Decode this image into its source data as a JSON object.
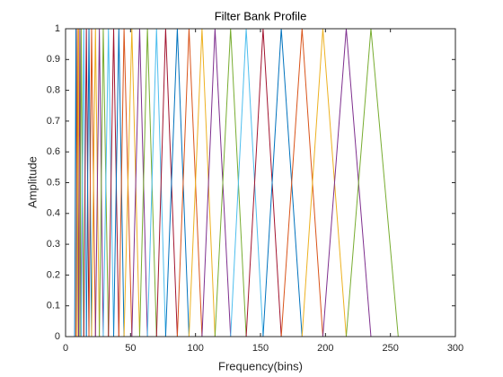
{
  "chart_data": {
    "type": "line",
    "title": "Filter Bank Profile",
    "x_label": "Frequency(bins)",
    "y_label": "Amplitude",
    "xlim": [
      0,
      300
    ],
    "xticks": [
      0,
      50,
      100,
      150,
      200,
      250,
      300
    ],
    "ylim": [
      0,
      1
    ],
    "yticks": [
      0,
      0.1,
      0.2,
      0.3,
      0.4,
      0.5,
      0.6,
      0.7,
      0.8,
      0.9,
      1
    ],
    "grid": false,
    "series": [
      {
        "color": "#0072BD",
        "x": [
          7,
          8,
          9
        ],
        "values": [
          0,
          1,
          0
        ]
      },
      {
        "color": "#D95319",
        "x": [
          8,
          9,
          10
        ],
        "values": [
          0,
          1,
          0
        ]
      },
      {
        "color": "#EDB120",
        "x": [
          9,
          10,
          11
        ],
        "values": [
          0,
          1,
          0
        ]
      },
      {
        "color": "#7E2F8E",
        "x": [
          10,
          11,
          12
        ],
        "values": [
          0,
          1,
          0
        ]
      },
      {
        "color": "#77AC30",
        "x": [
          11,
          12,
          14
        ],
        "values": [
          0,
          1,
          0
        ]
      },
      {
        "color": "#4DBEEE",
        "x": [
          12,
          14,
          16
        ],
        "values": [
          0,
          1,
          0
        ]
      },
      {
        "color": "#A2142F",
        "x": [
          14,
          16,
          18
        ],
        "values": [
          0,
          1,
          0
        ]
      },
      {
        "color": "#0072BD",
        "x": [
          16,
          18,
          20
        ],
        "values": [
          0,
          1,
          0
        ]
      },
      {
        "color": "#D95319",
        "x": [
          18,
          20,
          23
        ],
        "values": [
          0,
          1,
          0
        ]
      },
      {
        "color": "#EDB120",
        "x": [
          20,
          23,
          26
        ],
        "values": [
          0,
          1,
          0
        ]
      },
      {
        "color": "#7E2F8E",
        "x": [
          23,
          26,
          29
        ],
        "values": [
          0,
          1,
          0
        ]
      },
      {
        "color": "#77AC30",
        "x": [
          26,
          29,
          33
        ],
        "values": [
          0,
          1,
          0
        ]
      },
      {
        "color": "#4DBEEE",
        "x": [
          29,
          33,
          37
        ],
        "values": [
          0,
          1,
          0
        ]
      },
      {
        "color": "#A2142F",
        "x": [
          33,
          37,
          41
        ],
        "values": [
          0,
          1,
          0
        ]
      },
      {
        "color": "#0072BD",
        "x": [
          37,
          41,
          45
        ],
        "values": [
          0,
          1,
          0
        ]
      },
      {
        "color": "#D95319",
        "x": [
          41,
          45,
          51
        ],
        "values": [
          0,
          1,
          0
        ]
      },
      {
        "color": "#EDB120",
        "x": [
          45,
          51,
          57
        ],
        "values": [
          0,
          1,
          0
        ]
      },
      {
        "color": "#7E2F8E",
        "x": [
          51,
          57,
          63
        ],
        "values": [
          0,
          1,
          0
        ]
      },
      {
        "color": "#77AC30",
        "x": [
          57,
          63,
          70
        ],
        "values": [
          0,
          1,
          0
        ]
      },
      {
        "color": "#4DBEEE",
        "x": [
          63,
          70,
          77
        ],
        "values": [
          0,
          1,
          0
        ]
      },
      {
        "color": "#A2142F",
        "x": [
          70,
          77,
          86
        ],
        "values": [
          0,
          1,
          0
        ]
      },
      {
        "color": "#0072BD",
        "x": [
          77,
          86,
          95
        ],
        "values": [
          0,
          1,
          0
        ]
      },
      {
        "color": "#D95319",
        "x": [
          86,
          95,
          105
        ],
        "values": [
          0,
          1,
          0
        ]
      },
      {
        "color": "#EDB120",
        "x": [
          95,
          105,
          115
        ],
        "values": [
          0,
          1,
          0
        ]
      },
      {
        "color": "#7E2F8E",
        "x": [
          105,
          115,
          127
        ],
        "values": [
          0,
          1,
          0
        ]
      },
      {
        "color": "#77AC30",
        "x": [
          115,
          127,
          139
        ],
        "values": [
          0,
          1,
          0
        ]
      },
      {
        "color": "#4DBEEE",
        "x": [
          127,
          139,
          152
        ],
        "values": [
          0,
          1,
          0
        ]
      },
      {
        "color": "#A2142F",
        "x": [
          139,
          152,
          166
        ],
        "values": [
          0,
          1,
          0
        ]
      },
      {
        "color": "#0072BD",
        "x": [
          152,
          166,
          182
        ],
        "values": [
          0,
          1,
          0
        ]
      },
      {
        "color": "#D95319",
        "x": [
          166,
          182,
          198
        ],
        "values": [
          0,
          1,
          0
        ]
      },
      {
        "color": "#EDB120",
        "x": [
          182,
          198,
          216
        ],
        "values": [
          0,
          1,
          0
        ]
      },
      {
        "color": "#7E2F8E",
        "x": [
          198,
          216,
          235
        ],
        "values": [
          0,
          1,
          0
        ]
      },
      {
        "color": "#77AC30",
        "x": [
          216,
          235,
          256
        ],
        "values": [
          0,
          1,
          0
        ]
      }
    ]
  }
}
